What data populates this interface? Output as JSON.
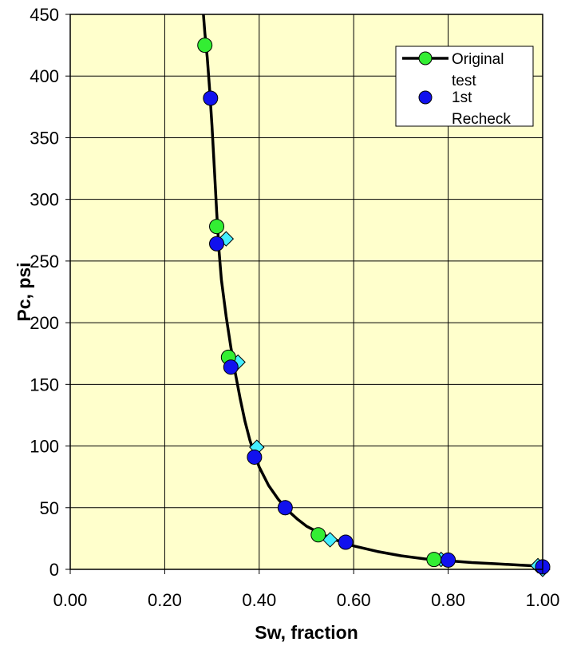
{
  "chart_data": {
    "type": "scatter",
    "title": "",
    "xlabel": "Sw, fraction",
    "ylabel": "Pc, psi",
    "xlim": [
      0,
      1
    ],
    "ylim": [
      0,
      450
    ],
    "x_ticks": [
      "0.00",
      "0.20",
      "0.40",
      "0.60",
      "0.80",
      "1.00"
    ],
    "y_ticks": [
      "0",
      "50",
      "100",
      "150",
      "200",
      "250",
      "300",
      "350",
      "400",
      "450"
    ],
    "grid": true,
    "legend_position": "top-right",
    "plot_background": "#ffffcc",
    "curve": {
      "color": "#000000",
      "x": [
        0.282,
        0.285,
        0.29,
        0.295,
        0.3,
        0.305,
        0.31,
        0.315,
        0.32,
        0.33,
        0.34,
        0.35,
        0.36,
        0.37,
        0.38,
        0.39,
        0.4,
        0.42,
        0.44,
        0.46,
        0.48,
        0.5,
        0.53,
        0.56,
        0.6,
        0.65,
        0.7,
        0.75,
        0.8,
        0.85,
        0.9,
        0.95,
        1.0
      ],
      "y": [
        450,
        435,
        415,
        390,
        360,
        325,
        290,
        258,
        235,
        205,
        180,
        158,
        138,
        120,
        105,
        93,
        83,
        68,
        57,
        48,
        41,
        35,
        29,
        24,
        19,
        14.5,
        11,
        8.5,
        7,
        5.5,
        4.5,
        3.5,
        2.5
      ]
    },
    "series": [
      {
        "name": "Original test",
        "marker": "circle",
        "color": "#33ee33",
        "x": [
          0.285,
          0.31,
          0.335,
          0.525,
          0.77
        ],
        "y": [
          425,
          278,
          172,
          28,
          8
        ]
      },
      {
        "name": "1st Recheck",
        "marker": "circle",
        "color": "#1111ee",
        "x": [
          0.297,
          0.31,
          0.34,
          0.39,
          0.455,
          0.583,
          0.8,
          1.0
        ],
        "y": [
          382,
          264,
          164,
          91,
          50,
          22,
          7.5,
          2
        ]
      },
      {
        "name": "",
        "marker": "diamond",
        "color": "#44eeff",
        "x": [
          0.33,
          0.355,
          0.395,
          0.455,
          0.55,
          0.785,
          0.99,
          1.0
        ],
        "y": [
          268,
          168,
          99,
          50,
          24,
          8,
          3,
          0
        ]
      }
    ]
  }
}
